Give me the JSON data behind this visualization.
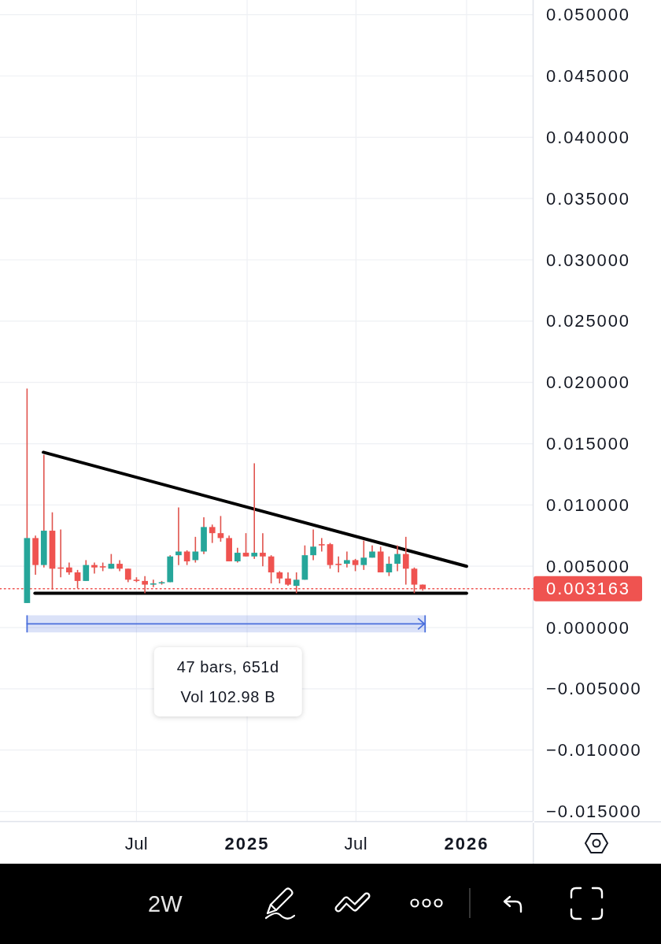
{
  "chart_data": {
    "type": "candlestick",
    "x": [
      "2024-01-01",
      "2024-01-15",
      "2024-01-29",
      "2024-02-12",
      "2024-02-26",
      "2024-03-11",
      "2024-03-25",
      "2024-04-08",
      "2024-04-22",
      "2024-05-06",
      "2024-05-20",
      "2024-06-03",
      "2024-06-17",
      "2024-07-01",
      "2024-07-15",
      "2024-07-29",
      "2024-08-12",
      "2024-08-26",
      "2024-09-09",
      "2024-09-23",
      "2024-10-07",
      "2024-10-21",
      "2024-11-04",
      "2024-11-18",
      "2024-12-02",
      "2024-12-16",
      "2024-12-30",
      "2025-01-13",
      "2025-01-27",
      "2025-02-10",
      "2025-02-24",
      "2025-03-10",
      "2025-03-24",
      "2025-04-07",
      "2025-04-21",
      "2025-05-05",
      "2025-05-19",
      "2025-06-02",
      "2025-06-16",
      "2025-06-30",
      "2025-07-14",
      "2025-07-28",
      "2025-08-11",
      "2025-08-25",
      "2025-09-08",
      "2025-09-22",
      "2025-10-06",
      "2025-10-20"
    ],
    "ohlc": [
      [
        0.002,
        0.0195,
        0.002,
        0.0073
      ],
      [
        0.0073,
        0.0075,
        0.0043,
        0.0051
      ],
      [
        0.0051,
        0.0141,
        0.0049,
        0.0079
      ],
      [
        0.0079,
        0.0094,
        0.0031,
        0.0048
      ],
      [
        0.0049,
        0.008,
        0.0041,
        0.0048
      ],
      [
        0.0049,
        0.0053,
        0.0043,
        0.0045
      ],
      [
        0.0045,
        0.0047,
        0.0032,
        0.0038
      ],
      [
        0.0038,
        0.0055,
        0.0038,
        0.0051
      ],
      [
        0.0051,
        0.0053,
        0.0044,
        0.0049
      ],
      [
        0.005,
        0.0053,
        0.0046,
        0.0049
      ],
      [
        0.0048,
        0.006,
        0.0048,
        0.0052
      ],
      [
        0.0052,
        0.0055,
        0.0046,
        0.0048
      ],
      [
        0.0048,
        0.0048,
        0.0037,
        0.0039
      ],
      [
        0.0039,
        0.0041,
        0.0037,
        0.0038
      ],
      [
        0.0038,
        0.0042,
        0.0028,
        0.0035
      ],
      [
        0.0035,
        0.0039,
        0.0033,
        0.0036
      ],
      [
        0.0036,
        0.0038,
        0.0035,
        0.0037
      ],
      [
        0.0037,
        0.0059,
        0.0037,
        0.0058
      ],
      [
        0.0059,
        0.0098,
        0.0051,
        0.0062
      ],
      [
        0.0062,
        0.0063,
        0.0051,
        0.0054
      ],
      [
        0.0055,
        0.0074,
        0.0053,
        0.0062
      ],
      [
        0.0062,
        0.009,
        0.006,
        0.0082
      ],
      [
        0.0082,
        0.0084,
        0.0069,
        0.0077
      ],
      [
        0.0077,
        0.0091,
        0.007,
        0.0073
      ],
      [
        0.0073,
        0.0075,
        0.0054,
        0.0054
      ],
      [
        0.0054,
        0.0065,
        0.0053,
        0.0061
      ],
      [
        0.0061,
        0.0077,
        0.0058,
        0.0058
      ],
      [
        0.0058,
        0.0134,
        0.0056,
        0.0061
      ],
      [
        0.0061,
        0.0077,
        0.005,
        0.0058
      ],
      [
        0.0058,
        0.0059,
        0.0036,
        0.0045
      ],
      [
        0.0045,
        0.0046,
        0.0036,
        0.004
      ],
      [
        0.004,
        0.0045,
        0.0034,
        0.0035
      ],
      [
        0.0034,
        0.0045,
        0.0028,
        0.0039
      ],
      [
        0.0039,
        0.0067,
        0.0039,
        0.0059
      ],
      [
        0.0059,
        0.008,
        0.0055,
        0.0066
      ],
      [
        0.0068,
        0.0073,
        0.0062,
        0.0067
      ],
      [
        0.0068,
        0.0069,
        0.0048,
        0.0051
      ],
      [
        0.0052,
        0.0058,
        0.0045,
        0.0051
      ],
      [
        0.0052,
        0.0062,
        0.0049,
        0.0055
      ],
      [
        0.0055,
        0.0056,
        0.0046,
        0.0051
      ],
      [
        0.0051,
        0.0071,
        0.0047,
        0.0057
      ],
      [
        0.0057,
        0.0067,
        0.0057,
        0.0062
      ],
      [
        0.0062,
        0.0066,
        0.0045,
        0.0045
      ],
      [
        0.0045,
        0.0058,
        0.0042,
        0.0052
      ],
      [
        0.0052,
        0.0067,
        0.0046,
        0.006
      ],
      [
        0.006,
        0.0074,
        0.0035,
        0.0048
      ],
      [
        0.0048,
        0.0049,
        0.0028,
        0.0035
      ],
      [
        0.0035,
        0.0035,
        0.003,
        0.003163
      ]
    ],
    "color": "#e0534d",
    "colors": [
      "#26a69a",
      "#ef5350",
      "#26a69a",
      "#ef5350",
      "#ef5350",
      "#ef5350",
      "#ef5350",
      "#26a69a",
      "#ef5350",
      "#ef5350",
      "#26a69a",
      "#ef5350",
      "#ef5350",
      "#ef5350",
      "#ef5350",
      "#26a69a",
      "#26a69a",
      "#26a69a",
      "#26a69a",
      "#ef5350",
      "#26a69a",
      "#26a69a",
      "#ef5350",
      "#ef5350",
      "#ef5350",
      "#26a69a",
      "#ef5350",
      "#26a69a",
      "#ef5350",
      "#ef5350",
      "#ef5350",
      "#ef5350",
      "#26a69a",
      "#26a69a",
      "#26a69a",
      "#ef5350",
      "#ef5350",
      "#ef5350",
      "#26a69a",
      "#ef5350",
      "#26a69a",
      "#26a69a",
      "#ef5350",
      "#26a69a",
      "#26a69a",
      "#ef5350",
      "#ef5350",
      "#ef5350"
    ],
    "series": [
      {
        "type": "line",
        "x": [
          "2024-01-28",
          "2026-01-01"
        ],
        "values": [
          0.0143,
          0.005
        ],
        "color": "#000000"
      },
      {
        "type": "line",
        "x": [
          "2024-01-14",
          "2026-01-01"
        ],
        "values": [
          0.0028,
          0.0028
        ],
        "color": "#000000"
      },
      {
        "type": "line",
        "x": [
          "2024-01-01",
          "2025-10-24"
        ],
        "values": [
          0.0003,
          0.0003
        ],
        "lower": [
          -0.0004,
          -0.0004
        ],
        "upper": [
          0.001,
          0.001
        ],
        "color": "#4a6fdc"
      }
    ],
    "xlim": [
      "2023-11-17",
      "2026-04-21"
    ],
    "xticks": [
      {
        "value": "2024-07-01",
        "label": "Jul"
      },
      {
        "value": "2025-01-01",
        "label": "2025"
      },
      {
        "value": "2025-07-01",
        "label": "Jul"
      },
      {
        "value": "2026-01-01",
        "label": "2026"
      }
    ],
    "ylim": [
      -0.0158,
      0.0512
    ],
    "yticks": [
      {
        "value": -0.015,
        "label": "−0.015000"
      },
      {
        "value": -0.01,
        "label": "−0.010000"
      },
      {
        "value": -0.005,
        "label": "−0.005000"
      },
      {
        "value": 0,
        "label": "0.000000"
      },
      {
        "value": 0.005,
        "label": "0.005000"
      },
      {
        "value": 0.01,
        "label": "0.010000"
      },
      {
        "value": 0.015,
        "label": "0.015000"
      },
      {
        "value": 0.02,
        "label": "0.020000"
      },
      {
        "value": 0.025,
        "label": "0.025000"
      },
      {
        "value": 0.03,
        "label": "0.030000"
      },
      {
        "value": 0.035,
        "label": "0.035000"
      },
      {
        "value": 0.04,
        "label": "0.040000"
      },
      {
        "value": 0.045,
        "label": "0.045000"
      },
      {
        "value": 0.05,
        "label": "0.050000"
      }
    ],
    "grid": true,
    "ref_lines": [
      {
        "axis": "y",
        "value": 0.003163,
        "label": "0.003163",
        "color": "#ef5350",
        "line_style": "dotted"
      }
    ],
    "annotations": [
      "47 bars, 651d",
      "Vol 102.98 B",
      "2W"
    ]
  }
}
